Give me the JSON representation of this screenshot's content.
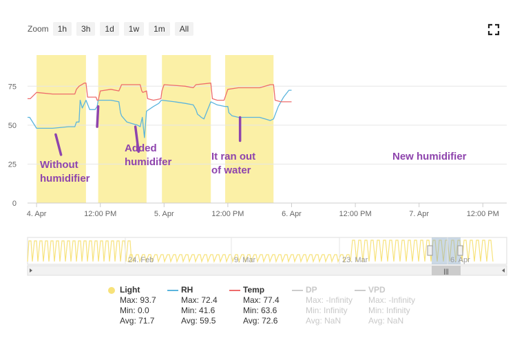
{
  "zoom": {
    "label": "Zoom",
    "buttons": [
      "1h",
      "3h",
      "1d",
      "1w",
      "1m",
      "All"
    ]
  },
  "colors": {
    "light": "#f7e27a",
    "light_band": "#fbf0a6",
    "rh": "#5ab4dd",
    "temp": "#ee6b6b",
    "annotation": "#8e44ad",
    "disabled": "#cccccc"
  },
  "chart_data": {
    "type": "line",
    "x_ticks": [
      "4. Apr",
      "12:00 PM",
      "5. Apr",
      "12:00 PM",
      "6. Apr",
      "12:00 PM",
      "7. Apr",
      "12:00 PM"
    ],
    "x_tick_hours": [
      0,
      12,
      24,
      36,
      48,
      60,
      72,
      84
    ],
    "x_range_hours": [
      -1.7,
      88.5
    ],
    "y_ticks": [
      0,
      25,
      50,
      75
    ],
    "ylim": [
      0,
      95
    ],
    "grid": "horizontal",
    "light_periods_hours": [
      [
        0,
        9.3
      ],
      [
        11.6,
        20.7
      ],
      [
        23.6,
        32.8
      ],
      [
        35.5,
        44.6
      ]
    ],
    "series": [
      {
        "name": "Light",
        "style": "bands",
        "color": "#f7e27a"
      },
      {
        "name": "RH",
        "color": "#5ab4dd",
        "points": [
          [
            -1.7,
            55
          ],
          [
            -1.3,
            55
          ],
          [
            0,
            48
          ],
          [
            3,
            48
          ],
          [
            6,
            49
          ],
          [
            7.2,
            49
          ],
          [
            7.5,
            52
          ],
          [
            8,
            52
          ],
          [
            8.2,
            66
          ],
          [
            8.6,
            61
          ],
          [
            9.3,
            66
          ],
          [
            10,
            60
          ],
          [
            11,
            60
          ],
          [
            11.4,
            62
          ],
          [
            11.6,
            66
          ],
          [
            12,
            66
          ],
          [
            14,
            66
          ],
          [
            15.5,
            65
          ],
          [
            15.8,
            58
          ],
          [
            16,
            56
          ],
          [
            17,
            52
          ],
          [
            18,
            51
          ],
          [
            19,
            50
          ],
          [
            19.5,
            49
          ],
          [
            19.9,
            55
          ],
          [
            20.3,
            42
          ],
          [
            20.7,
            59
          ],
          [
            22,
            62
          ],
          [
            23,
            64
          ],
          [
            23.5,
            66
          ],
          [
            23.6,
            66
          ],
          [
            26,
            65
          ],
          [
            28,
            64
          ],
          [
            29.5,
            63
          ],
          [
            30,
            60
          ],
          [
            30.3,
            57
          ],
          [
            30.7,
            56
          ],
          [
            31,
            55
          ],
          [
            31.5,
            54
          ],
          [
            32.8,
            65
          ],
          [
            34,
            63
          ],
          [
            35.5,
            62
          ],
          [
            36,
            62
          ],
          [
            36.2,
            58
          ],
          [
            36.8,
            56
          ],
          [
            38,
            55
          ],
          [
            40,
            55
          ],
          [
            42,
            55
          ],
          [
            43,
            54
          ],
          [
            44,
            53
          ],
          [
            44.6,
            54
          ],
          [
            45.5,
            62
          ],
          [
            46.5,
            68
          ],
          [
            47.5,
            72.4
          ],
          [
            48,
            72.4
          ]
        ]
      },
      {
        "name": "Temp",
        "color": "#ee6b6b",
        "points": [
          [
            -1.7,
            67
          ],
          [
            -1.2,
            67
          ],
          [
            0,
            71
          ],
          [
            3,
            70
          ],
          [
            6,
            70
          ],
          [
            7.2,
            70
          ],
          [
            7.5,
            73
          ],
          [
            8,
            75
          ],
          [
            9,
            77
          ],
          [
            9.3,
            77
          ],
          [
            9.6,
            68
          ],
          [
            10,
            68
          ],
          [
            11.2,
            68
          ],
          [
            11.4,
            66
          ],
          [
            11.6,
            66
          ],
          [
            12,
            72
          ],
          [
            14,
            73
          ],
          [
            15.5,
            72
          ],
          [
            16,
            76
          ],
          [
            18,
            76
          ],
          [
            19.5,
            76
          ],
          [
            19.8,
            72
          ],
          [
            20,
            71
          ],
          [
            20.7,
            72
          ],
          [
            20.9,
            67
          ],
          [
            22,
            66
          ],
          [
            23.4,
            67
          ],
          [
            23.6,
            72
          ],
          [
            24,
            76
          ],
          [
            26,
            75.5
          ],
          [
            28,
            75
          ],
          [
            29.5,
            74
          ],
          [
            30,
            76
          ],
          [
            32.8,
            77
          ],
          [
            33.1,
            67
          ],
          [
            34,
            66
          ],
          [
            35.3,
            66
          ],
          [
            35.5,
            68
          ],
          [
            36,
            73
          ],
          [
            38,
            74
          ],
          [
            40,
            74
          ],
          [
            42,
            74
          ],
          [
            43,
            75
          ],
          [
            44,
            76
          ],
          [
            44.6,
            76
          ],
          [
            44.9,
            66
          ],
          [
            46,
            65
          ],
          [
            48,
            65
          ]
        ]
      },
      {
        "name": "DP",
        "enabled": false
      },
      {
        "name": "VPD",
        "enabled": false
      }
    ],
    "annotations": [
      {
        "text": [
          "Without",
          "humidifier"
        ],
        "arrow_from": [
          3.6,
          44
        ],
        "arrow_to": [
          4.6,
          31
        ]
      },
      {
        "text": [
          "Added",
          "humidifer"
        ],
        "arrow_from": [
          11.6,
          62
        ],
        "arrow_to": [
          11.4,
          49
        ]
      },
      {
        "text": [
          "It ran out",
          "of water"
        ],
        "arrow_from": [
          18.6,
          49
        ],
        "arrow_to": [
          19.2,
          33
        ]
      },
      {
        "text": [
          "New humidifier"
        ],
        "arrow_from": [
          38.3,
          55
        ],
        "arrow_to": [
          38.3,
          40
        ]
      }
    ],
    "navigator": {
      "labels": [
        "24. Feb",
        "9. Mar",
        "23. Mar",
        "6. Apr"
      ],
      "scroll_handle": "|||"
    }
  },
  "legend": [
    {
      "name": "Light",
      "color": "#f7e27a",
      "symbol": "circle",
      "enabled": true,
      "stats": [
        "Max: 93.7",
        "Min: 0.0",
        "Avg: 71.7"
      ]
    },
    {
      "name": "RH",
      "color": "#5ab4dd",
      "symbol": "line",
      "enabled": true,
      "stats": [
        "Max: 72.4",
        "Min: 41.6",
        "Avg: 59.5"
      ]
    },
    {
      "name": "Temp",
      "color": "#ee6b6b",
      "symbol": "line",
      "enabled": true,
      "stats": [
        "Max: 77.4",
        "Min: 63.6",
        "Avg: 72.6"
      ]
    },
    {
      "name": "DP",
      "color": "#cccccc",
      "symbol": "line",
      "enabled": false,
      "stats": [
        "Max: -Infinity",
        "Min: Infinity",
        "Avg: NaN"
      ]
    },
    {
      "name": "VPD",
      "color": "#cccccc",
      "symbol": "line",
      "enabled": false,
      "stats": [
        "Max: -Infinity",
        "Min: Infinity",
        "Avg: NaN"
      ]
    }
  ]
}
